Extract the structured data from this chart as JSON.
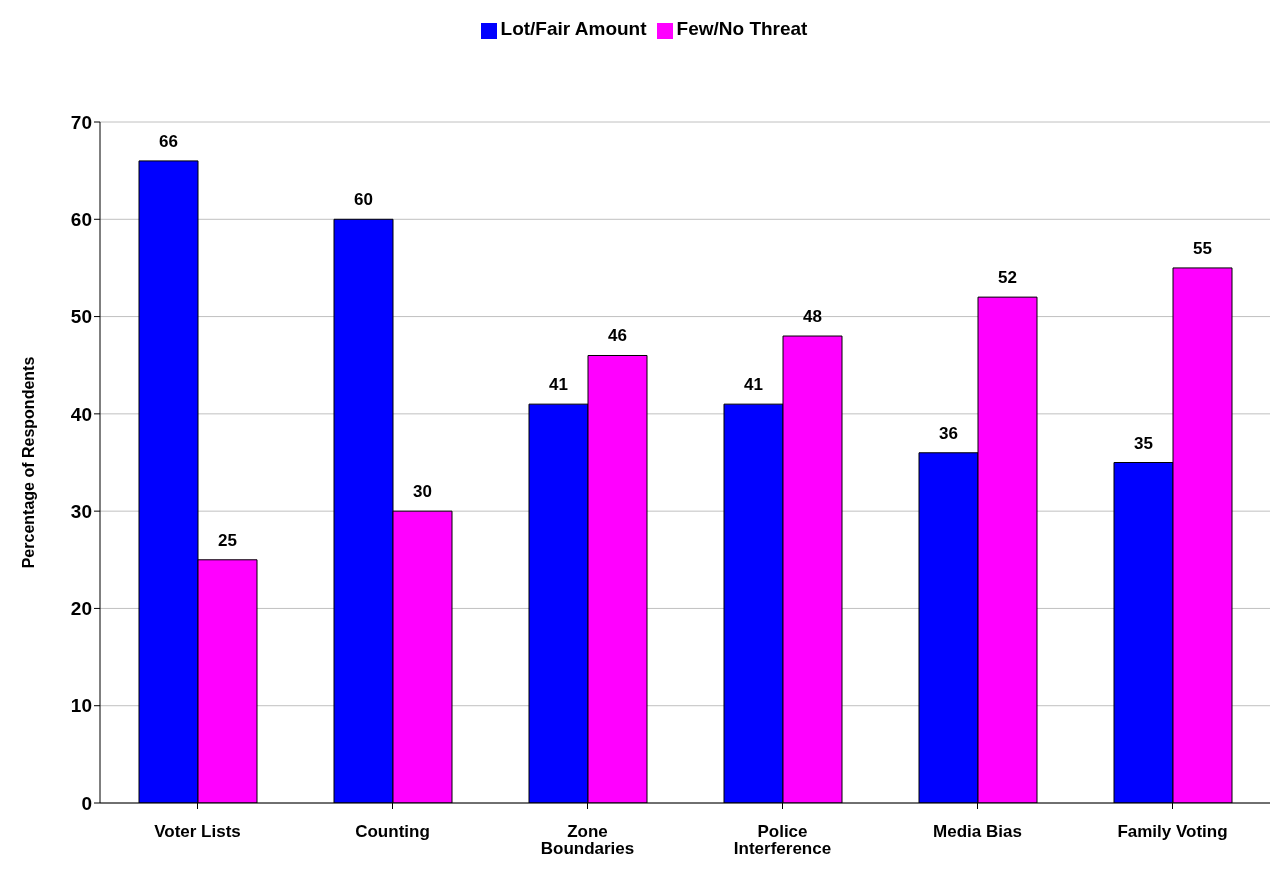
{
  "chart_data": {
    "type": "bar",
    "ylabel": "Percentage of Respondents",
    "categories": [
      "Voter Lists",
      "Counting",
      "Zone Boundaries",
      "Police Interference",
      "Media Bias",
      "Family Voting"
    ],
    "series": [
      {
        "name": "Lot/Fair Amount",
        "color": "#0000ff",
        "values": [
          66,
          60,
          41,
          41,
          36,
          35
        ]
      },
      {
        "name": "Few/No Threat",
        "color": "#ff00ff",
        "values": [
          25,
          30,
          46,
          48,
          52,
          55
        ]
      }
    ],
    "ylim": [
      0,
      70
    ],
    "yticks": [
      0,
      10,
      20,
      30,
      40,
      50,
      60,
      70
    ],
    "grid": "y",
    "legend": "top",
    "data_labels": true
  }
}
